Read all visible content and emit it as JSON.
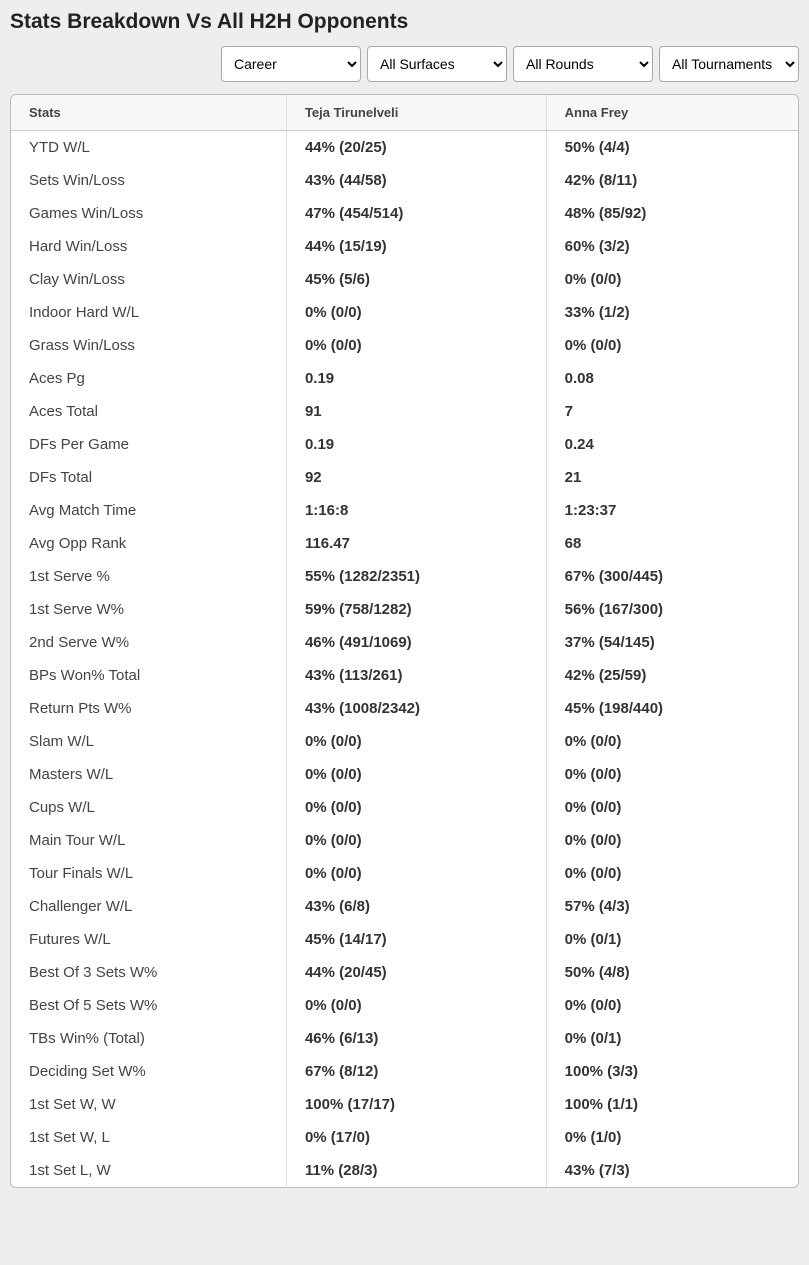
{
  "title": "Stats Breakdown Vs All H2H Opponents",
  "filters": {
    "period": {
      "selected": "Career",
      "options": [
        "Career"
      ]
    },
    "surface": {
      "selected": "All Surfaces",
      "options": [
        "All Surfaces"
      ]
    },
    "round": {
      "selected": "All Rounds",
      "options": [
        "All Rounds"
      ]
    },
    "tournament": {
      "selected": "All Tournaments",
      "options": [
        "All Tournaments"
      ]
    }
  },
  "table": {
    "columns": [
      "Stats",
      "Teja Tirunelveli",
      "Anna Frey"
    ],
    "rows": [
      [
        "YTD W/L",
        "44% (20/25)",
        "50% (4/4)"
      ],
      [
        "Sets Win/Loss",
        "43% (44/58)",
        "42% (8/11)"
      ],
      [
        "Games Win/Loss",
        "47% (454/514)",
        "48% (85/92)"
      ],
      [
        "Hard Win/Loss",
        "44% (15/19)",
        "60% (3/2)"
      ],
      [
        "Clay Win/Loss",
        "45% (5/6)",
        "0% (0/0)"
      ],
      [
        "Indoor Hard W/L",
        "0% (0/0)",
        "33% (1/2)"
      ],
      [
        "Grass Win/Loss",
        "0% (0/0)",
        "0% (0/0)"
      ],
      [
        "Aces Pg",
        "0.19",
        "0.08"
      ],
      [
        "Aces Total",
        "91",
        "7"
      ],
      [
        "DFs Per Game",
        "0.19",
        "0.24"
      ],
      [
        "DFs Total",
        "92",
        "21"
      ],
      [
        "Avg Match Time",
        "1:16:8",
        "1:23:37"
      ],
      [
        "Avg Opp Rank",
        "116.47",
        "68"
      ],
      [
        "1st Serve %",
        "55% (1282/2351)",
        "67% (300/445)"
      ],
      [
        "1st Serve W%",
        "59% (758/1282)",
        "56% (167/300)"
      ],
      [
        "2nd Serve W%",
        "46% (491/1069)",
        "37% (54/145)"
      ],
      [
        "BPs Won% Total",
        "43% (113/261)",
        "42% (25/59)"
      ],
      [
        "Return Pts W%",
        "43% (1008/2342)",
        "45% (198/440)"
      ],
      [
        "Slam W/L",
        "0% (0/0)",
        "0% (0/0)"
      ],
      [
        "Masters W/L",
        "0% (0/0)",
        "0% (0/0)"
      ],
      [
        "Cups W/L",
        "0% (0/0)",
        "0% (0/0)"
      ],
      [
        "Main Tour W/L",
        "0% (0/0)",
        "0% (0/0)"
      ],
      [
        "Tour Finals W/L",
        "0% (0/0)",
        "0% (0/0)"
      ],
      [
        "Challenger W/L",
        "43% (6/8)",
        "57% (4/3)"
      ],
      [
        "Futures W/L",
        "45% (14/17)",
        "0% (0/1)"
      ],
      [
        "Best Of 3 Sets W%",
        "44% (20/45)",
        "50% (4/8)"
      ],
      [
        "Best Of 5 Sets W%",
        "0% (0/0)",
        "0% (0/0)"
      ],
      [
        "TBs Win% (Total)",
        "46% (6/13)",
        "0% (0/1)"
      ],
      [
        "Deciding Set W%",
        "67% (8/12)",
        "100% (3/3)"
      ],
      [
        "1st Set W, W",
        "100% (17/17)",
        "100% (1/1)"
      ],
      [
        "1st Set W, L",
        "0% (17/0)",
        "0% (1/0)"
      ],
      [
        "1st Set L, W",
        "11% (28/3)",
        "43% (7/3)"
      ]
    ]
  },
  "styling": {
    "background_color": "#eeeeee",
    "table_background": "#ffffff",
    "header_background": "#f7f7f7",
    "border_color": "#cccccc",
    "text_color": "#333333",
    "title_fontsize": 21,
    "header_fontsize": 13,
    "cell_fontsize": 15
  }
}
